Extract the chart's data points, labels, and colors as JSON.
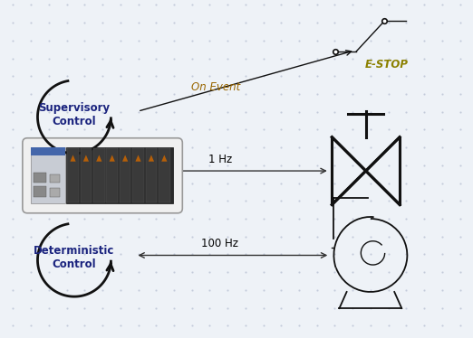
{
  "bg_color": "#eef2f7",
  "estop_label": "E-STOP",
  "estop_color": "#8B8000",
  "on_event_label": "On Event",
  "on_event_color": "#996600",
  "hz1_label": "1 Hz",
  "hz100_label": "100 Hz",
  "supervisory_label": "Supervisory\nControl",
  "deterministic_label": "Deterministic\nControl",
  "arrow_color": "#333333",
  "text_color": "#000000",
  "symbol_color": "#111111",
  "dot_color": "#b0b8cc",
  "label_color": "#1a237e"
}
